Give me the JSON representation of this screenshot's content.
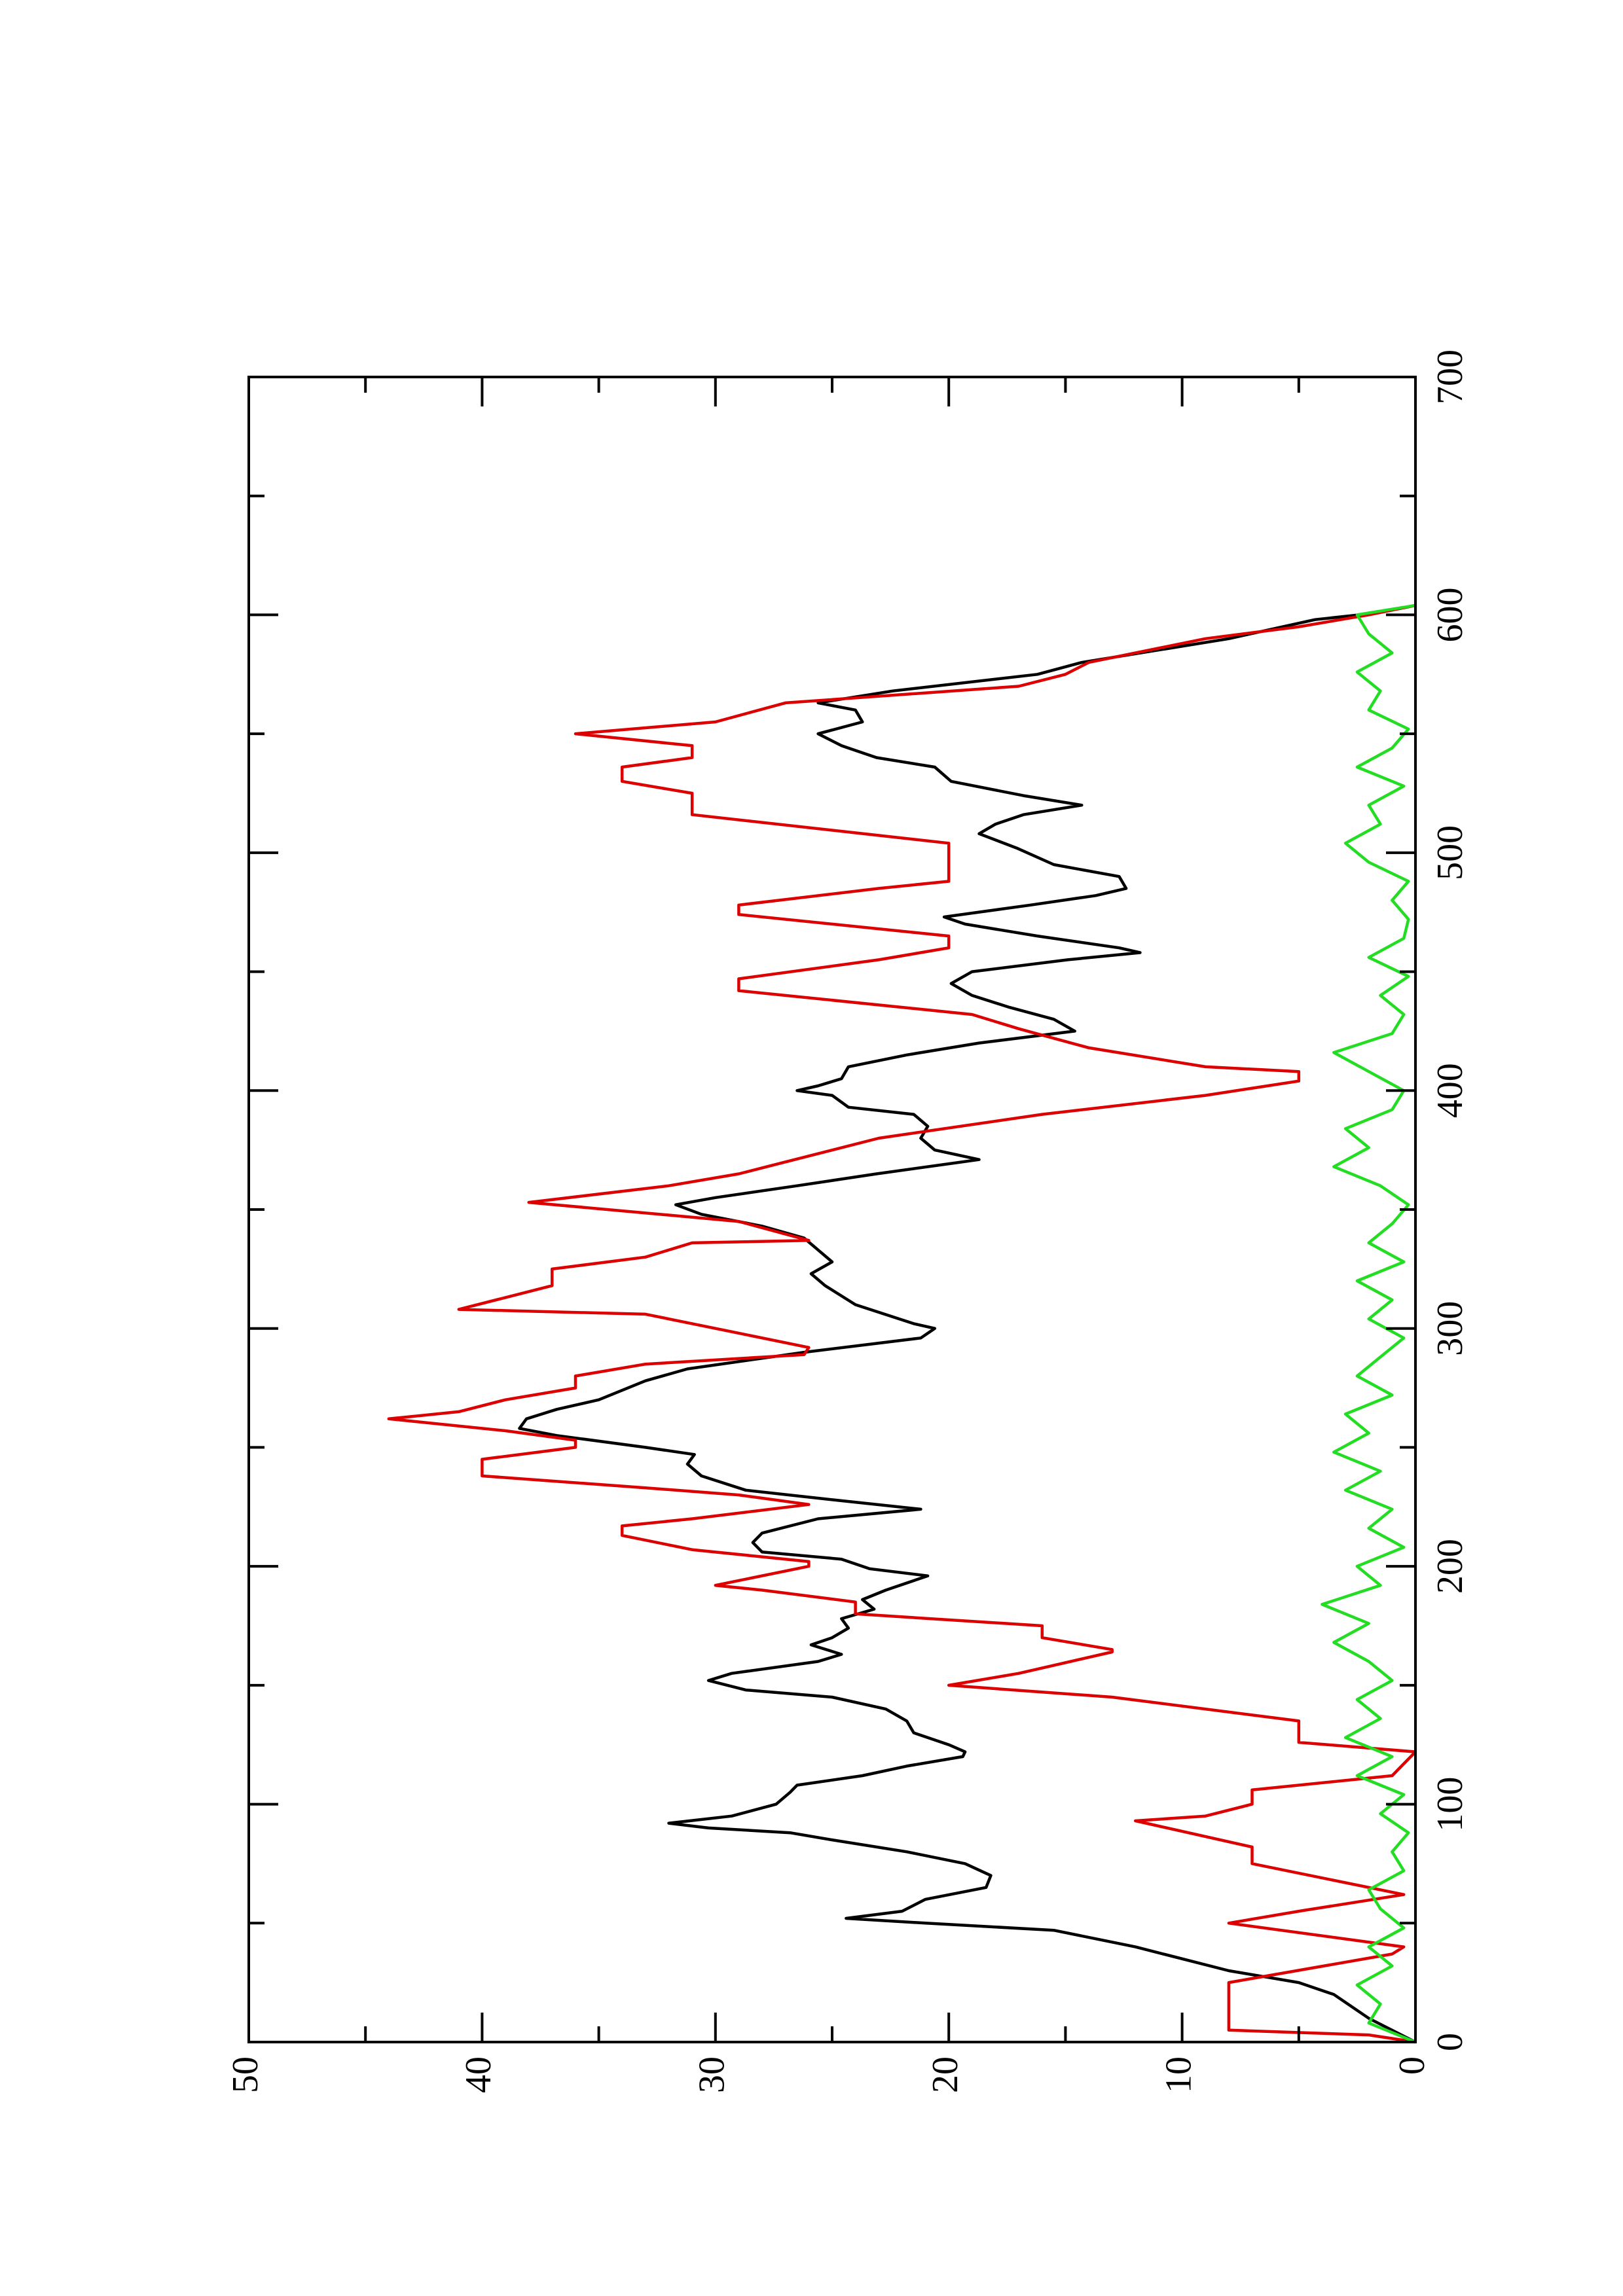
{
  "chart_data": {
    "type": "line",
    "xlim": [
      0,
      700
    ],
    "xticks": [
      0,
      100,
      200,
      300,
      400,
      500,
      600,
      700
    ],
    "xminorticks": [
      50,
      150,
      250,
      350,
      450,
      550,
      650
    ],
    "ylim": [
      0,
      50
    ],
    "yticks": [
      0,
      10,
      20,
      30,
      40,
      50
    ],
    "yminorticks": [
      5,
      15,
      25,
      35,
      45
    ],
    "rotated": true,
    "series": [
      {
        "color": "#000000",
        "x": [
          0,
          10,
          20,
          25,
          30,
          40,
          47,
          50,
          52,
          55,
          60,
          65,
          70,
          75,
          80,
          85,
          88,
          90,
          92,
          95,
          100,
          105,
          108,
          112,
          116,
          120,
          122,
          125,
          130,
          135,
          140,
          145,
          148,
          152,
          155,
          160,
          163,
          167,
          170,
          174,
          178,
          182,
          186,
          190,
          196,
          199,
          203,
          206,
          210,
          214,
          220,
          224,
          228,
          232,
          238,
          243,
          247,
          250,
          255,
          258,
          262,
          266,
          270,
          278,
          283,
          290,
          296,
          300,
          302,
          310,
          318,
          323,
          328,
          333,
          338,
          343,
          348,
          352,
          355,
          360,
          365,
          371,
          375,
          380,
          385,
          390,
          393,
          398,
          400,
          402,
          405,
          410,
          415,
          420,
          425,
          430,
          435,
          440,
          445,
          450,
          455,
          458,
          460,
          465,
          470,
          473,
          478,
          482,
          485,
          490,
          495,
          502,
          508,
          512,
          516,
          520,
          524,
          530,
          536,
          540,
          545,
          550,
          555,
          560,
          563,
          568,
          575,
          580,
          590,
          598,
          600,
          603,
          604
        ],
        "values": [
          0,
          2,
          3.5,
          5,
          8,
          12,
          15.5,
          21,
          24.4,
          22,
          21,
          18.4,
          18.2,
          19.3,
          21.8,
          25,
          26.8,
          30.3,
          32,
          29.3,
          27.4,
          26.8,
          26.5,
          23.7,
          21.8,
          19.4,
          19.3,
          20,
          21.5,
          21.8,
          22.7,
          25,
          28.7,
          30.3,
          29.3,
          25.6,
          24.6,
          25.9,
          25,
          24.3,
          24.6,
          23.2,
          23.7,
          22.7,
          20.9,
          23.4,
          24.6,
          28,
          28.4,
          28,
          25.6,
          21.2,
          25,
          28.7,
          30.6,
          31.2,
          30.9,
          33,
          36.8,
          38.4,
          38.1,
          36.8,
          35,
          33,
          31.2,
          26.2,
          21.2,
          20.6,
          21.5,
          24,
          25.3,
          25.9,
          25,
          25.6,
          26.2,
          28,
          30.6,
          31.7,
          30,
          26.5,
          23.1,
          18.7,
          20.6,
          21.2,
          20.9,
          21.5,
          24.3,
          25,
          26.5,
          25.6,
          24.6,
          24.3,
          21.8,
          18.7,
          14.6,
          15.5,
          17.4,
          19,
          19.9,
          19,
          14.9,
          11.8,
          12.7,
          16.2,
          19.3,
          20.2,
          16.5,
          13.7,
          12.4,
          12.7,
          15.5,
          17.1,
          18.7,
          18,
          16.8,
          14.3,
          16.8,
          19.9,
          20.6,
          23.1,
          24.6,
          25.6,
          23.7,
          24,
          25.6,
          22.4,
          16.2,
          14.3,
          8,
          4.3,
          2.4,
          0.5,
          0
        ]
      },
      {
        "color": "#dd0000",
        "x": [
          0,
          3,
          5,
          25,
          37,
          40,
          50,
          55,
          62,
          75,
          82,
          93,
          95,
          100,
          106,
          112,
          122,
          126,
          135,
          145,
          150,
          155,
          164,
          165,
          170,
          175,
          180,
          185,
          190,
          192,
          200,
          202,
          207,
          213,
          217,
          220,
          226,
          230,
          233,
          238,
          245,
          250,
          253,
          257,
          262,
          265,
          270,
          275,
          280,
          285,
          289,
          292,
          302,
          306,
          308,
          318,
          325,
          330,
          336,
          337,
          345,
          353,
          360,
          365,
          370,
          380,
          390,
          398,
          404,
          408,
          410,
          418,
          426,
          432,
          442,
          447,
          455,
          460,
          465,
          474,
          478,
          485,
          488,
          500,
          504,
          516,
          520,
          525,
          530,
          536,
          540,
          545,
          550,
          555,
          563,
          570,
          575,
          580,
          590,
          595,
          600,
          604
        ],
        "values": [
          0,
          2,
          8,
          8,
          1,
          0.5,
          8,
          5,
          0.5,
          7,
          7,
          12,
          9,
          7,
          7,
          1,
          0,
          5,
          5,
          13,
          20,
          17,
          13,
          13,
          16,
          16,
          24,
          24,
          28,
          30,
          26,
          26,
          31,
          34,
          34,
          31,
          26,
          29,
          33,
          40,
          40,
          36,
          36,
          39,
          44,
          41,
          39,
          36,
          36,
          33,
          26.2,
          26,
          31,
          33,
          41,
          37,
          37,
          33,
          31,
          26,
          29,
          38,
          32,
          29,
          27,
          23,
          16,
          9,
          5,
          5,
          9,
          14,
          17,
          19,
          29,
          29,
          23,
          20,
          20,
          29,
          29,
          23,
          20,
          20,
          20,
          31,
          31,
          31,
          34,
          34,
          31,
          31,
          36,
          30,
          27,
          17,
          15,
          14,
          9,
          5,
          2,
          0
        ]
      },
      {
        "color": "#22dd22",
        "x": [
          0,
          8,
          16,
          24,
          32,
          40,
          48,
          56,
          64,
          72,
          80,
          88,
          96,
          104,
          112,
          120,
          128,
          136,
          144,
          152,
          160,
          168,
          176,
          184,
          192,
          200,
          208,
          216,
          224,
          232,
          240,
          248,
          256,
          264,
          272,
          280,
          288,
          296,
          304,
          312,
          320,
          328,
          336,
          344,
          352,
          360,
          368,
          376,
          384,
          392,
          400,
          408,
          416,
          424,
          432,
          440,
          448,
          456,
          464,
          472,
          480,
          488,
          496,
          504,
          512,
          520,
          528,
          536,
          544,
          552,
          560,
          568,
          576,
          584,
          592,
          600,
          604
        ],
        "values": [
          0,
          2,
          1.5,
          2.5,
          1,
          2,
          0.5,
          1.5,
          2,
          0.5,
          1,
          0.3,
          1.5,
          0.5,
          2.5,
          1,
          3,
          1.5,
          2.5,
          1,
          2,
          3.5,
          2,
          4,
          1.5,
          2.5,
          0.5,
          2,
          1,
          3,
          1.5,
          3.5,
          2,
          3,
          1,
          2.5,
          1.5,
          0.5,
          2,
          1,
          2.5,
          0.5,
          2,
          1,
          0.3,
          1.5,
          3.5,
          2,
          3,
          1,
          0.5,
          2,
          3.5,
          1,
          0.5,
          1.5,
          0.3,
          2,
          0.5,
          0.3,
          1,
          0.3,
          2,
          3,
          1.5,
          2,
          0.5,
          2.5,
          1,
          0.3,
          2,
          1.5,
          2.5,
          1,
          2,
          2.5,
          0
        ]
      }
    ]
  }
}
